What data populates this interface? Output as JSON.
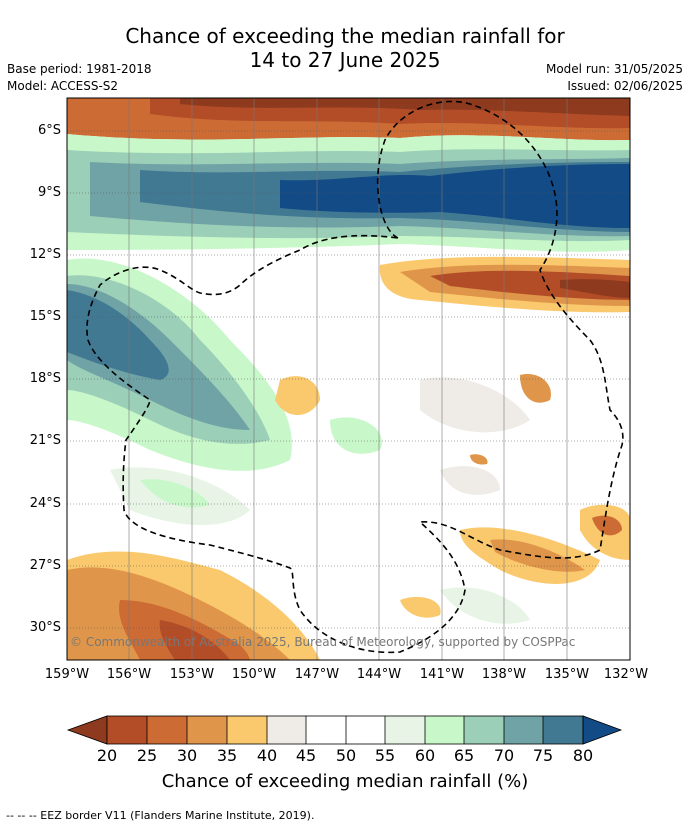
{
  "title_line1": "Chance of exceeding the median rainfall for",
  "title_line2": "14 to 27 June 2025",
  "base_period": "Base period: 1981-2018",
  "model": "Model: ACCESS-S2",
  "model_run": "Model run: 31/05/2025",
  "issued": "Issued: 02/06/2025",
  "copyright": "© Commonwealth of Australia 2025, Bureau of Meteorology, supported by COSPPac",
  "footer": "--  --  -- EEZ border V11 (Flanders Marine Institute, 2019).",
  "map": {
    "lat_labels": [
      "6°S",
      "9°S",
      "12°S",
      "15°S",
      "18°S",
      "21°S",
      "24°S",
      "27°S",
      "30°S"
    ],
    "lon_labels": [
      "159°W",
      "156°W",
      "153°W",
      "150°W",
      "147°W",
      "144°W",
      "141°W",
      "138°W",
      "135°W",
      "132°W"
    ]
  },
  "colorbar": {
    "label": "Chance of exceeding median rainfall (%)",
    "ticks": [
      "20",
      "25",
      "30",
      "35",
      "40",
      "45",
      "50",
      "55",
      "60",
      "65",
      "70",
      "75",
      "80"
    ],
    "colors": {
      "below20": "#8e3a1e",
      "20-25": "#b34d28",
      "25-30": "#cd6b35",
      "30-35": "#e0964a",
      "35-40": "#fbc96d",
      "40-45": "#efebe7",
      "45-50": "#ffffff",
      "50-55": "#ffffff",
      "55-60": "#e8f5e6",
      "60-65": "#c8f8c9",
      "65-70": "#9bcfb7",
      "70-75": "#6fa3a5",
      "75-80": "#417993",
      "above80": "#124b85"
    }
  }
}
